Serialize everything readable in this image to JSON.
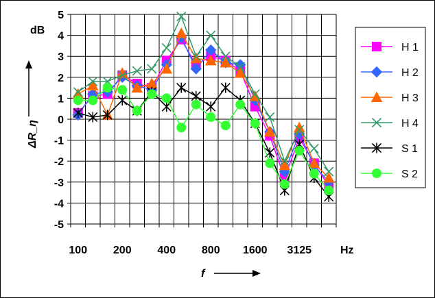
{
  "chart_data": {
    "type": "line",
    "xlabel": "f",
    "ylabel": "ΔR_η",
    "yunit": "dB",
    "xunit": "Hz",
    "x_tick_labels": [
      "100",
      "200",
      "400",
      "800",
      "1600",
      "3125"
    ],
    "y_tick_labels": [
      "5",
      "4",
      "3",
      "2",
      "1",
      "0",
      "-1",
      "-2",
      "-3",
      "-4",
      "-5"
    ],
    "ylim": [
      -5,
      5
    ],
    "grid": true,
    "legend_position": "right",
    "x": [
      100,
      125,
      160,
      200,
      250,
      315,
      400,
      500,
      630,
      800,
      1000,
      1250,
      1600,
      2000,
      2500,
      3125,
      4000,
      5000
    ],
    "series": [
      {
        "name": "H 1",
        "color": "#ff00ff",
        "marker": "square",
        "values": [
          0.3,
          1.1,
          1.2,
          2.1,
          1.7,
          1.5,
          2.8,
          3.8,
          2.6,
          3.0,
          2.8,
          2.3,
          0.6,
          -0.8,
          -2.8,
          -0.9,
          -2.1,
          -3.2
        ]
      },
      {
        "name": "H 2",
        "color": "#3366ff",
        "marker": "diamond",
        "values": [
          0.2,
          1.2,
          1.3,
          2.0,
          1.6,
          1.4,
          2.6,
          3.9,
          2.4,
          3.3,
          2.7,
          2.6,
          0.9,
          -0.6,
          -2.5,
          -0.7,
          -2.2,
          -3.0
        ]
      },
      {
        "name": "H 3",
        "color": "#ff6600",
        "marker": "triangle",
        "values": [
          1.2,
          1.6,
          0.2,
          2.2,
          1.5,
          1.7,
          2.4,
          4.1,
          2.9,
          2.8,
          2.7,
          2.2,
          1.1,
          -0.6,
          -2.2,
          -0.4,
          -2.1,
          -2.8
        ]
      },
      {
        "name": "H 4",
        "color": "#339966",
        "marker": "x",
        "values": [
          1.3,
          1.8,
          1.8,
          2.1,
          2.3,
          2.4,
          3.4,
          4.9,
          3.0,
          4.0,
          3.0,
          2.5,
          1.2,
          0.1,
          -2.0,
          -0.5,
          -1.4,
          -2.5
        ]
      },
      {
        "name": "S 1",
        "color": "#000000",
        "marker": "star",
        "values": [
          0.3,
          0.1,
          0.2,
          0.9,
          0.4,
          1.3,
          0.6,
          1.5,
          1.1,
          0.6,
          1.5,
          0.9,
          -0.2,
          -1.6,
          -3.4,
          -1.2,
          -2.8,
          -3.7
        ]
      },
      {
        "name": "S 2",
        "color": "#33ff33",
        "marker": "circle",
        "values": [
          0.9,
          0.9,
          1.5,
          1.4,
          0.4,
          1.2,
          1.0,
          -0.4,
          0.7,
          0.1,
          -0.3,
          0.7,
          -0.2,
          -2.1,
          -3.1,
          -1.5,
          -2.6,
          -3.4
        ]
      }
    ]
  }
}
